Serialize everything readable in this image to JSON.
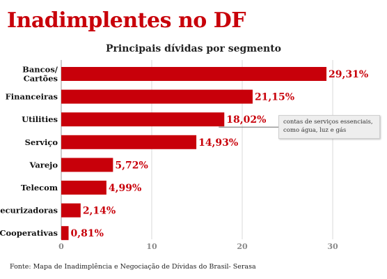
{
  "title": "Inadimplentes no DF",
  "source": "Fonte: Mapa de Inadimplência e Negociação de Dívidas do Brasil- Serasa",
  "colors": {
    "accent": "#c8000a",
    "grid": "#d9d9d9",
    "axis": "#999999"
  },
  "chart_data": {
    "type": "bar",
    "orientation": "horizontal",
    "title": "Principais dívidas por segmento",
    "categories": [
      "Bancos/Cartões",
      "Financeiras",
      "Utilities",
      "Serviço",
      "Varejo",
      "Telecom",
      "Securizadoras",
      "Cooperativas"
    ],
    "category_lines": [
      [
        "Bancos/",
        "Cartões"
      ],
      [
        "Financeiras"
      ],
      [
        "Utilities"
      ],
      [
        "Serviço"
      ],
      [
        "Varejo"
      ],
      [
        "Telecom"
      ],
      [
        "Securizadoras"
      ],
      [
        "Cooperativas"
      ]
    ],
    "values": [
      29.31,
      21.15,
      18.02,
      14.93,
      5.72,
      4.99,
      2.14,
      0.81
    ],
    "value_labels": [
      "29,31%",
      "21,15%",
      "18,02%",
      "14,93%",
      "5,72%",
      "4,99%",
      "2,14%",
      "0,81%"
    ],
    "xlim": [
      0,
      30
    ],
    "xticks": [
      0,
      10,
      20,
      30
    ],
    "xtick_labels": [
      "0",
      "10",
      "20",
      "30"
    ],
    "xlabel": "",
    "ylabel": "",
    "grid": true,
    "annotations": [
      {
        "category": "Utilities",
        "lines": [
          "contas de serviços essenciais,",
          "como água, luz e gás"
        ]
      }
    ]
  }
}
